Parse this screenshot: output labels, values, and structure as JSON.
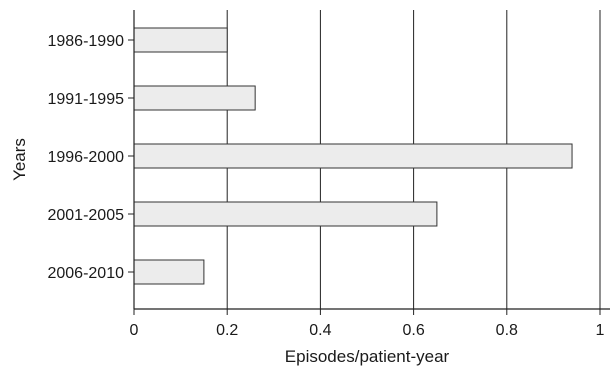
{
  "chart_data": {
    "type": "bar",
    "orientation": "horizontal",
    "categories": [
      "1986-1990",
      "1991-1995",
      "1996-2000",
      "2001-2005",
      "2006-2010"
    ],
    "values": [
      0.2,
      0.26,
      0.94,
      0.65,
      0.15
    ],
    "xlabel": "Episodes/patient-year",
    "ylabel": "Years",
    "xlim": [
      0,
      1
    ],
    "xticks": [
      "0",
      "0.2",
      "0.4",
      "0.6",
      "0.8",
      "1"
    ],
    "grid": "vertical",
    "bar_fill": "#ececec",
    "bar_stroke": "#333333"
  }
}
